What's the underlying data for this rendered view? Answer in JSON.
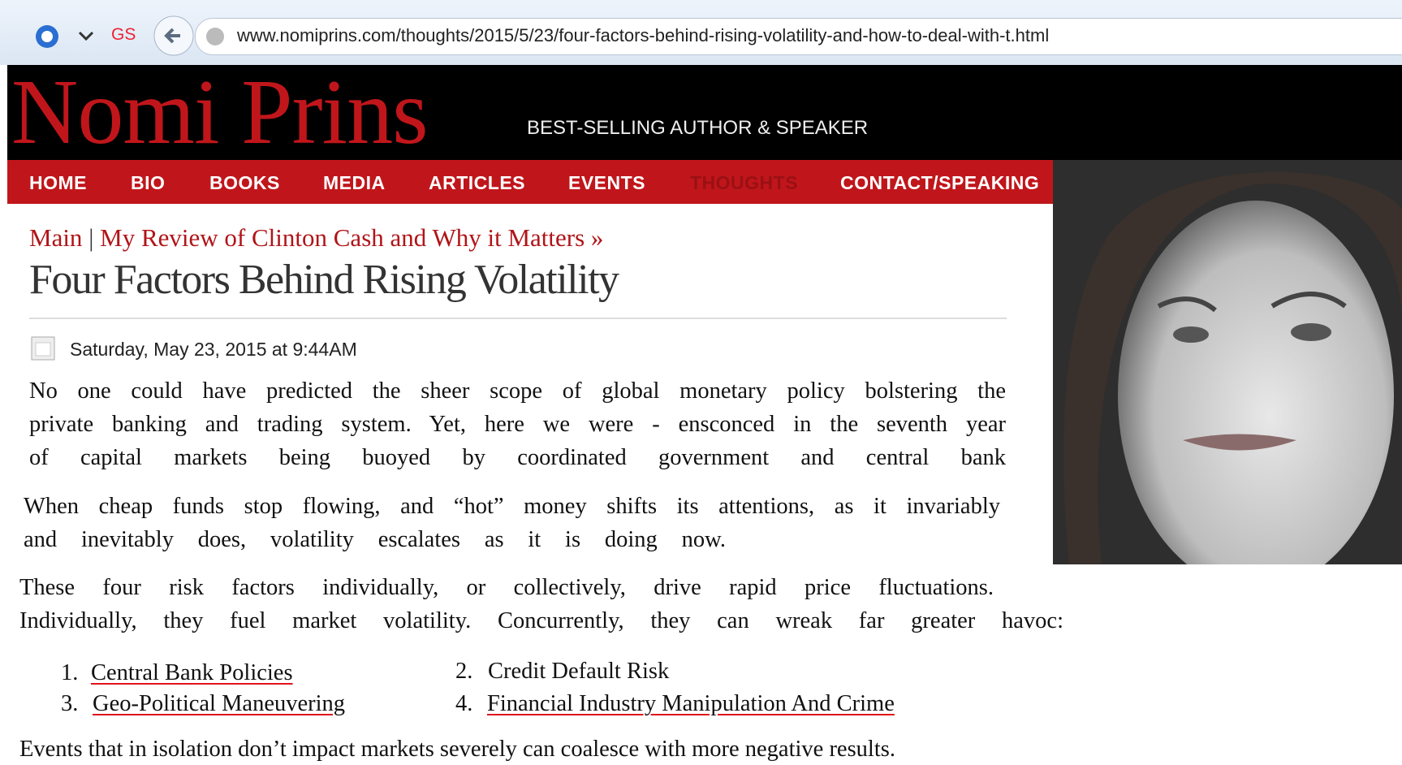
{
  "browser": {
    "badge": "GS",
    "url": "www.nomiprins.com/thoughts/2015/5/23/four-factors-behind-rising-volatility-and-how-to-deal-with-t.html"
  },
  "header": {
    "title": "Nomi Prins",
    "tagline": "BEST-SELLING AUTHOR & SPEAKER"
  },
  "nav": [
    "HOME",
    "BIO",
    "BOOKS",
    "MEDIA",
    "ARTICLES",
    "EVENTS",
    "THOUGHTS",
    "CONTACT/SPEAKING"
  ],
  "breadcrumb": {
    "main": "Main",
    "separator": "|",
    "next": "My Review of Clinton Cash and Why it Matters »"
  },
  "article": {
    "title": "Four Factors Behind Rising Volatility",
    "date": "Saturday, May 23, 2015 at 9:44AM",
    "paragraphs": [
      [
        "No one could have predicted the sheer scope of global monetary policy bolstering the",
        "private banking and trading system. Yet, here we were - ensconced in the seventh year",
        "of capital markets being buoyed by coordinated government and central bank"
      ],
      [
        "When cheap funds stop flowing, and “hot” money shifts its attentions, as it invariably",
        "and inevitably does, volatility escalates as it is doing now."
      ],
      [
        "These four risk factors individually, or collectively, drive rapid price fluctuations.",
        "Individually, they fuel market volatility. Concurrently, they can wreak far greater havoc:"
      ]
    ],
    "list": [
      {
        "number": "1.",
        "text": "Central Bank Policies"
      },
      {
        "number": "2.",
        "text": "Credit Default Risk"
      },
      {
        "number": "3.",
        "text": "Geo-Political Maneuvering"
      },
      {
        "number": "4.",
        "text": "Financial Industry Manipulation And Crime"
      }
    ],
    "closing": "Events that in isolation don’t impact markets severely can coalesce with more negative  results."
  }
}
